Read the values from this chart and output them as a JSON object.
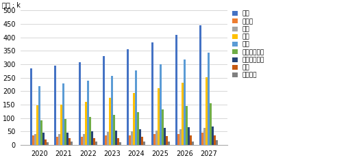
{
  "years": [
    2020,
    2021,
    2022,
    2023,
    2024,
    2025,
    2026,
    2027
  ],
  "categories": [
    "미국",
    "캐나다",
    "일본",
    "중국",
    "유럽",
    "아시아태평양",
    "라틴아메리카",
    "중동",
    "아프리카"
  ],
  "colors": [
    "#4472C4",
    "#ED7D31",
    "#A5A5A5",
    "#FFC000",
    "#5B9BD5",
    "#70AD47",
    "#264478",
    "#C55A11",
    "#808080"
  ],
  "data": {
    "미국": [
      285,
      295,
      308,
      330,
      355,
      382,
      410,
      445
    ],
    "캐나다": [
      35,
      30,
      32,
      35,
      37,
      40,
      42,
      47
    ],
    "일본": [
      40,
      40,
      42,
      48,
      52,
      55,
      60,
      63
    ],
    "중국": [
      147,
      150,
      160,
      175,
      193,
      210,
      232,
      252
    ],
    "유럽": [
      220,
      228,
      240,
      257,
      277,
      300,
      318,
      342
    ],
    "아시아태평양": [
      93,
      97,
      104,
      111,
      122,
      133,
      145,
      156
    ],
    "라틴아메리카": [
      45,
      47,
      50,
      53,
      58,
      64,
      67,
      70
    ],
    "중동": [
      22,
      25,
      25,
      27,
      30,
      33,
      35,
      37
    ],
    "아프리카": [
      10,
      12,
      12,
      11,
      12,
      13,
      14,
      17
    ]
  },
  "ylim": [
    0,
    500
  ],
  "yticks": [
    0,
    50,
    100,
    150,
    200,
    250,
    300,
    350,
    400,
    450,
    500
  ],
  "ylabel": "단위 : k",
  "background_color": "#ffffff",
  "grid_color": "#d0d0d0"
}
